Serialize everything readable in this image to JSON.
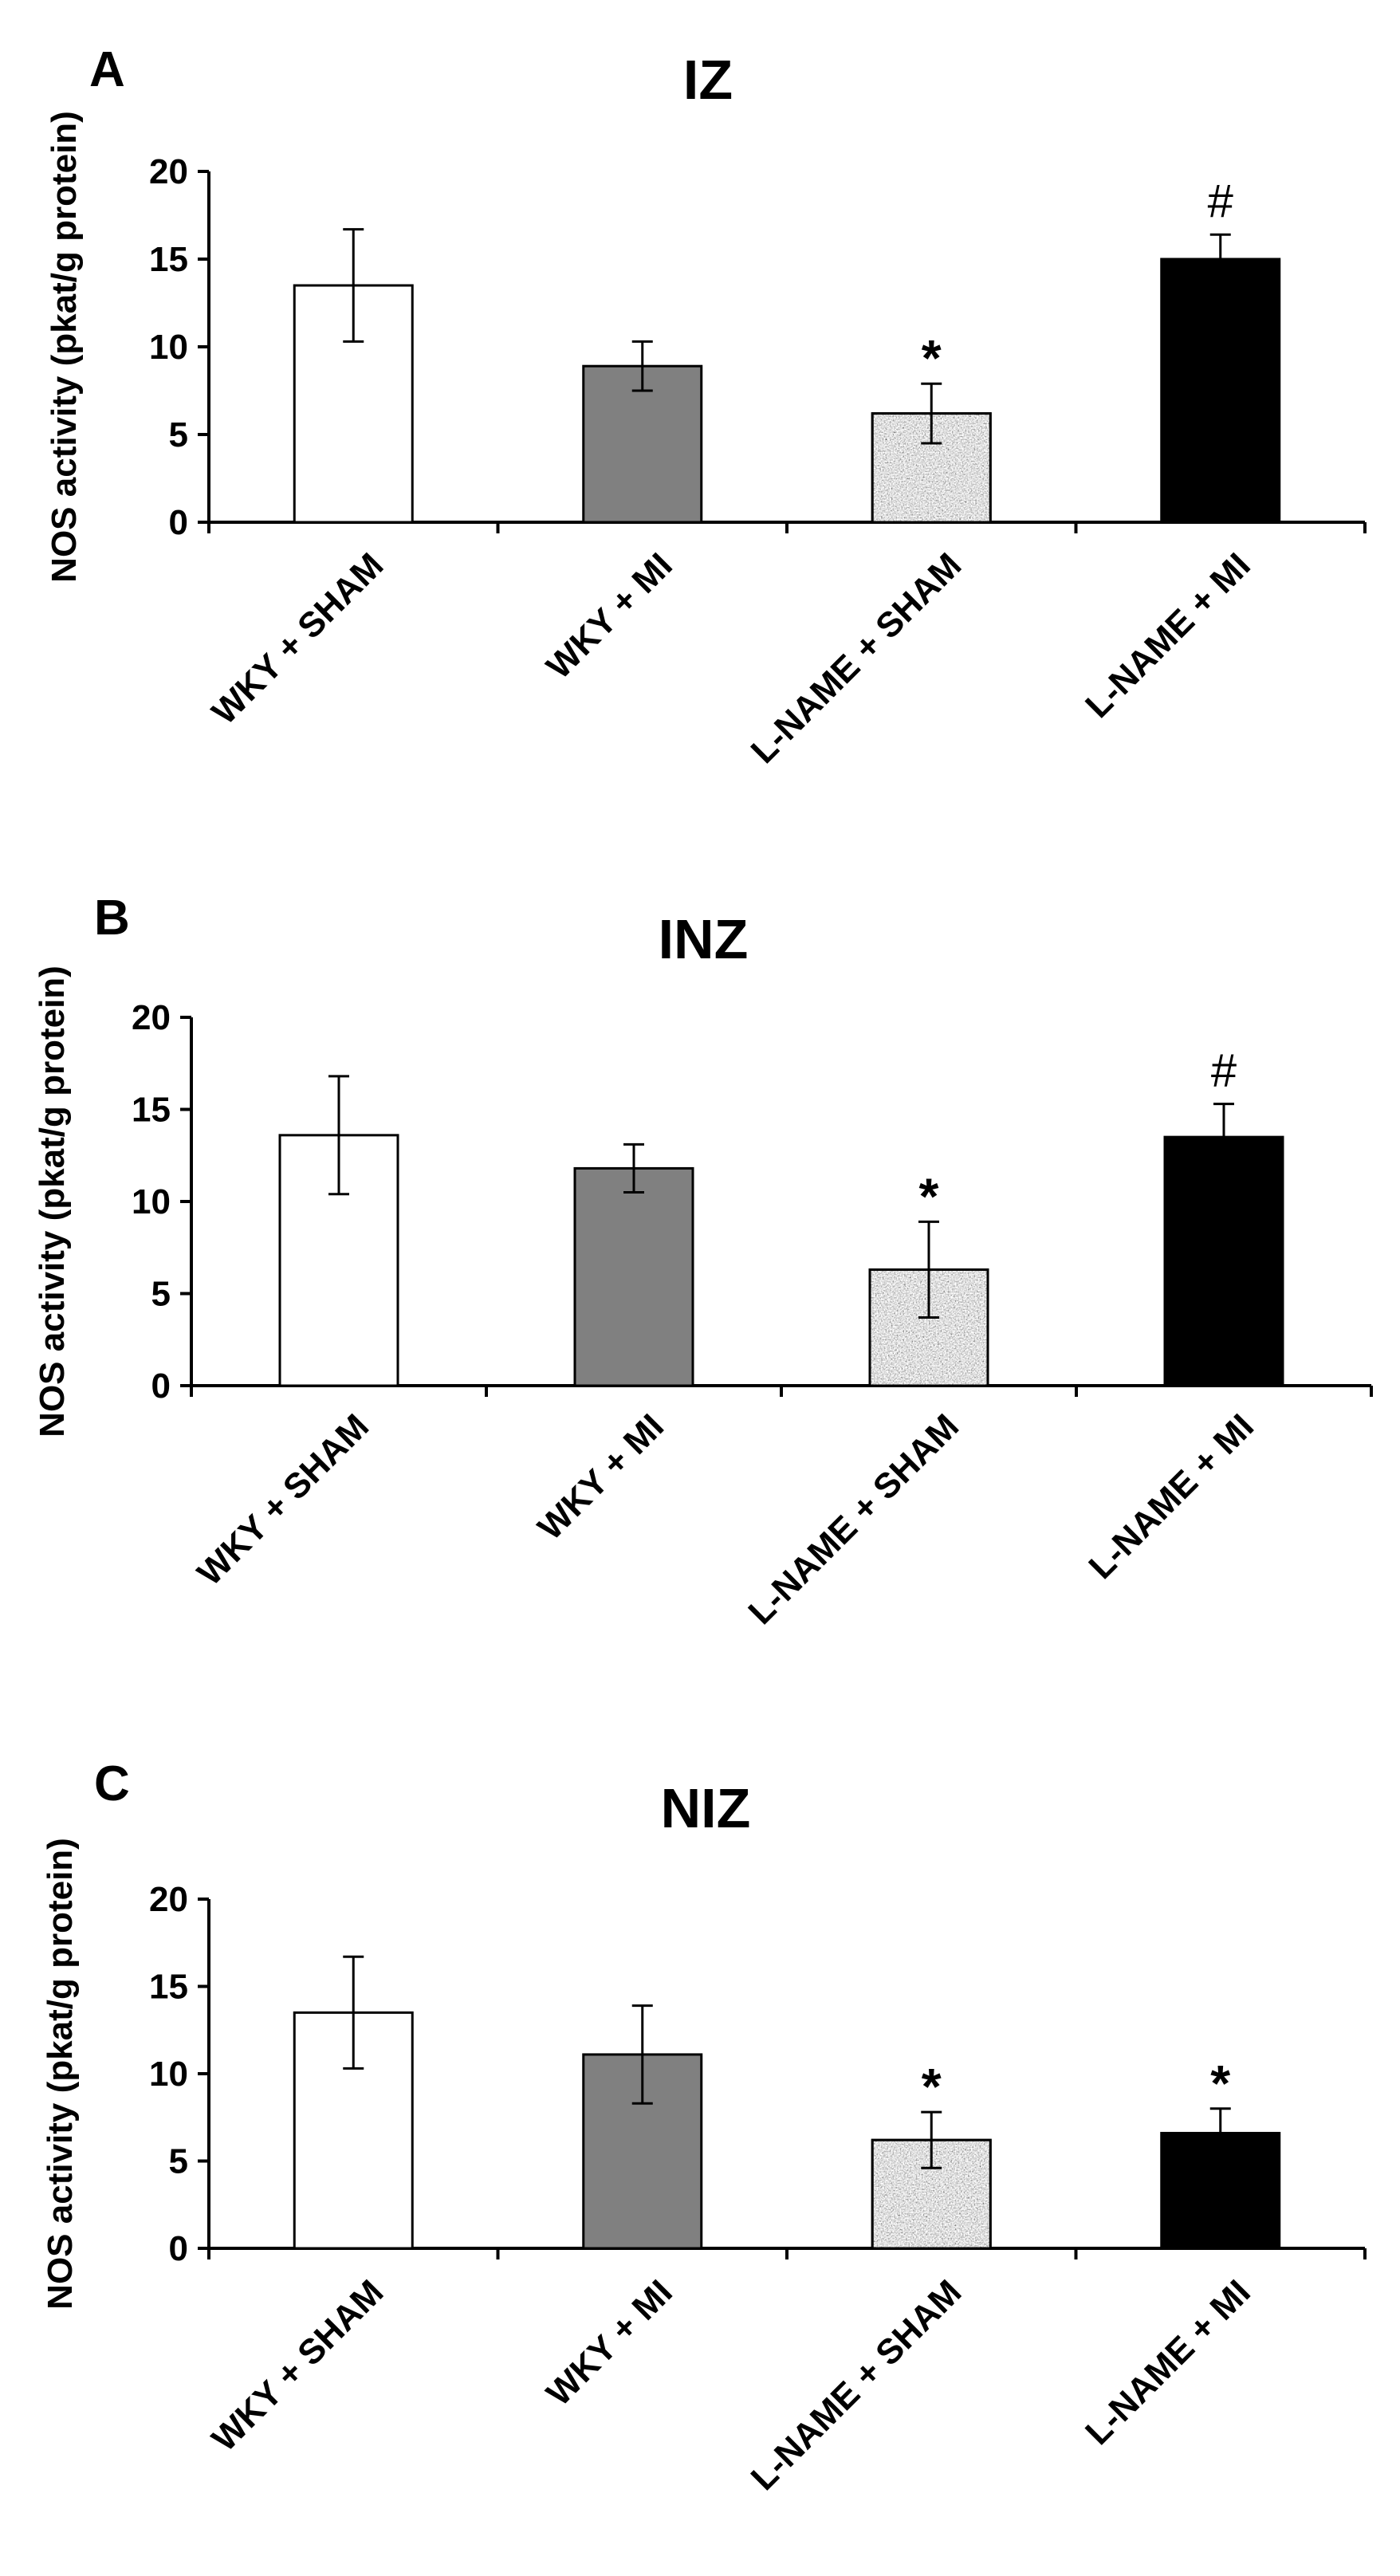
{
  "chart_data": [
    {
      "type": "bar",
      "panel": "A",
      "title": "IZ",
      "ylabel": "NOS activity (pkat/g protein)",
      "xlabel": "",
      "ylim": [
        0,
        20
      ],
      "yticks": [
        0,
        5,
        10,
        15,
        20
      ],
      "categories": [
        "WKY + SHAM",
        "WKY + MI",
        "L-NAME + SHAM",
        "L-NAME + MI"
      ],
      "values": [
        13.5,
        8.9,
        6.2,
        15.0
      ],
      "errors": [
        3.2,
        1.4,
        1.7,
        1.4
      ],
      "annotations": [
        "",
        "",
        "*",
        "#"
      ],
      "fills": [
        "white",
        "gray",
        "speckled",
        "black"
      ],
      "colors": {
        "white": "#ffffff",
        "gray": "#808080",
        "black": "#000000",
        "speckled": "#b4b4b4"
      }
    },
    {
      "type": "bar",
      "panel": "B",
      "title": "INZ",
      "ylabel": "NOS activity (pkat/g protein)",
      "xlabel": "",
      "ylim": [
        0,
        20
      ],
      "yticks": [
        0,
        5,
        10,
        15,
        20
      ],
      "categories": [
        "WKY + SHAM",
        "WKY + MI",
        "L-NAME + SHAM",
        "L-NAME + MI"
      ],
      "values": [
        13.6,
        11.8,
        6.3,
        13.5
      ],
      "errors": [
        3.2,
        1.3,
        2.6,
        1.8
      ],
      "annotations": [
        "",
        "",
        "*",
        "#"
      ],
      "fills": [
        "white",
        "gray",
        "speckled",
        "black"
      ],
      "colors": {
        "white": "#ffffff",
        "gray": "#808080",
        "black": "#000000",
        "speckled": "#b4b4b4"
      }
    },
    {
      "type": "bar",
      "panel": "C",
      "title": "NIZ",
      "ylabel": "NOS activity (pkat/g protein)",
      "xlabel": "",
      "ylim": [
        0,
        20
      ],
      "yticks": [
        0,
        5,
        10,
        15,
        20
      ],
      "categories": [
        "WKY + SHAM",
        "WKY + MI",
        "L-NAME + SHAM",
        "L-NAME + MI"
      ],
      "values": [
        13.5,
        11.1,
        6.2,
        6.6
      ],
      "errors": [
        3.2,
        2.8,
        1.6,
        1.4
      ],
      "annotations": [
        "",
        "",
        "*",
        "*"
      ],
      "fills": [
        "white",
        "gray",
        "speckled",
        "black"
      ],
      "colors": {
        "white": "#ffffff",
        "gray": "#808080",
        "black": "#000000",
        "speckled": "#b4b4b4"
      }
    }
  ]
}
